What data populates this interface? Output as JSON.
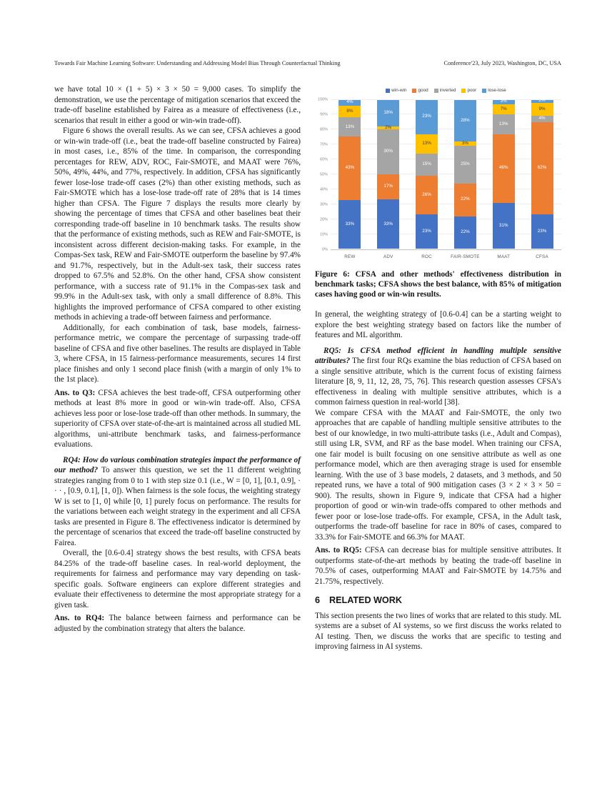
{
  "header": {
    "left": "Towards Fair Machine Learning Software: Understanding and Addressing Model Bias Through Counterfactual Thinking",
    "right": "Conference'23, July 2023, Washington, DC, USA"
  },
  "left_column": {
    "p1": "we have total 10 × (1 + 5) × 3 × 50 = 9,000 cases. To simplify the demonstration, we use the percentage of mitigation scenarios that exceed the trade-off baseline established by Fairea as a measure of effectiveness (i.e., scenarios that result in either a good or win-win trade-off).",
    "p2": "Figure 6 shows the overall results. As we can see, CFSA achieves a good or win-win trade-off (i.e., beat the trade-off baseline constructed by Fairea) in most cases, i.e., 85% of the time. In comparison, the corresponding percentages for REW, ADV, ROC, Fair-SMOTE, and MAAT were 76%, 50%, 49%, 44%, and 77%, respectively. In addition, CFSA has significantly fewer lose-lose trade-off cases (2%) than other existing methods, such as Fair-SMOTE which has a lose-lose trade-off rate of 28% that is 14 times higher than CFSA. The Figure 7 displays the results more clearly by showing the percentage of times that CFSA and other baselines beat their corresponding trade-off baseline in 10 benchmark tasks. The results show that the performance of existing methods, such as REW and Fair-SMOTE, is inconsistent across different decision-making tasks. For example, in the Compas-Sex task, REW and Fair-SMOTE outperform the baseline by 97.4% and 91.7%, respectively, but in the Adult-sex task, their success rates dropped to 67.5% and 52.8%. On the other hand, CFSA show consistent performance, with a success rate of 91.1% in the Compas-sex task and 99.9% in the Adult-sex task, with only a small difference of 8.8%. This highlights the improved performance of CFSA compared to other existing methods in achieving a trade-off between fairness and performance.",
    "p3": "Additionally, for each combination of task, base models, fairness-performance metric, we compare the percentage of surpassing trade-off baseline of CFSA and five other baselines. The results are displayed in Table 3, where CFSA, in 15 fairness-performance measurements, secures 14 first place finishes and only 1 second place finish (with a margin of only 1% to the 1st place).",
    "ans_q3_lead": "Ans. to Q3:",
    "ans_q3_text": " CFSA achieves the best trade-off, CFSA outperforming other methods at least 8% more in good or win-win trade-off. Also, CFSA achieves less poor or lose-lose trade-off than other methods. In summary, the superiority of CFSA over state-of-the-art is maintained across all studied ML algorithms, uni-attribute benchmark tasks, and fairness-performance evaluations.",
    "rq4_lead": "RQ4: How do various combination strategies impact the performance of our method?",
    "rq4_text": " To answer this question, we set the 11 different weighting strategies ranging from 0 to 1 with step size 0.1 (i.e., W = [0, 1], [0.1, 0.9], · · · , [0.9, 0.1], [1, 0]). When fairness is the sole focus, the weighting strategy W is set to [1, 0] while [0, 1] purely focus on performance. The results for the variations between each weight strategy in the experiment and all CFSA tasks are presented in Figure 8. The effectiveness indicator is determined by the percentage of scenarios that exceed the trade-off baseline constructed by Fairea.",
    "p6": "Overall, the [0.6-0.4] strategy shows the best results, with CFSA beats 84.25% of the trade-off baseline cases. In real-world deployment, the requirements for fairness and performance may vary depending on task-specific goals. Software engineers can explore different strategies and evaluate their effectiveness to determine the most appropriate strategy for a given task.",
    "ans_rq4_lead": "Ans. to RQ4:",
    "ans_rq4_text": " The balance between fairness and performance can be adjusted by the combination strategy that alters the balance."
  },
  "figure6": {
    "caption": "Figure 6: CFSA and other methods' effectiveness distribution in benchmark tasks; CFSA shows the best balance, with 85% of mitigation cases having good or win-win results."
  },
  "right_column": {
    "p1": "In general, the weighting strategy of [0.6-0.4] can be a starting weight to explore the best weighting strategy based on factors like the number of features and ML algorithm.",
    "rq5_lead": "RQ5: Is CFSA method efficient in handling multiple sensitive attributes?",
    "rq5_text": " The first four RQs examine the bias reduction of CFSA based on a single sensitive attribute, which is the current focus of existing fairness literature [8, 9, 11, 12, 28, 75, 76]. This research question assesses CFSA's effectiveness in dealing with multiple sensitive attributes, which is a common fairness question in real-world [38].",
    "p3": "We compare CFSA with the MAAT and Fair-SMOTE, the only two approaches that are capable of handling multiple sensitive attributes to the best of our knowledge, in two multi-attribute tasks (i.e., Adult and Compas), still using LR, SVM, and RF as the base model. When training our CFSA, one fair model is built focusing on one sensitive attribute as well as one performance model, which are then averaging strage is used for ensemble learning. With the use of 3 base models, 2 datasets, and 3 methods, and 50 repeated runs, we have a total of 900 mitigation cases (3 × 2 × 3 × 50 = 900). The results, shown in Figure 9, indicate that CFSA had a higher proportion of good or win-win trade-offs compared to other methods and fewer poor or lose-lose trade-offs. For example, CFSA, in the Adult task, outperforms the trade-off baseline for race in 80% of cases, compared to 33.3% for Fair-SMOTE and 66.3% for MAAT.",
    "ans_rq5_lead": "Ans. to RQ5:",
    "ans_rq5_text": " CFSA can decrease bias for multiple sensitive attributes. It outperforms state-of-the-art methods by beating the trade-off baseline in 70.5% of cases, outperforming MAAT and Fair-SMOTE by 14.75% and 21.75%, respectively.",
    "section_number": "6",
    "section_title": "RELATED WORK",
    "p6": "This section presents the two lines of works that are related to this study. ML systems are a subset of AI systems, so we first discuss the works related to AI testing. Then, we discuss the works that are specific to testing and improving fairness in AI systems."
  },
  "chart_data": {
    "type": "bar",
    "stacked": true,
    "title": "",
    "xlabel": "",
    "ylabel": "",
    "ylim": [
      0,
      100
    ],
    "legend_position": "top",
    "grid": true,
    "categories": [
      "REW",
      "ADV",
      "ROC",
      "FAIR-SMOTE",
      "MAAT",
      "CFSA"
    ],
    "y_ticks": [
      "0%",
      "10%",
      "20%",
      "30%",
      "40%",
      "50%",
      "60%",
      "70%",
      "80%",
      "90%",
      "100%"
    ],
    "series": [
      {
        "name": "win-win",
        "color": "#4472C4",
        "values": [
          33,
          33,
          23,
          22,
          31,
          23
        ]
      },
      {
        "name": "good",
        "color": "#ED7D31",
        "values": [
          43,
          17,
          26,
          22,
          46,
          62
        ]
      },
      {
        "name": "inverted",
        "color": "#A5A5A5",
        "values": [
          13,
          30,
          15,
          25,
          13,
          4
        ]
      },
      {
        "name": "poor",
        "color": "#FFC000",
        "values": [
          8,
          2,
          13,
          3,
          7,
          9
        ],
        "dark_label": true
      },
      {
        "name": "lose-lose",
        "color": "#5B9BD5",
        "values": [
          4,
          18,
          23,
          28,
          3,
          2
        ]
      }
    ]
  }
}
